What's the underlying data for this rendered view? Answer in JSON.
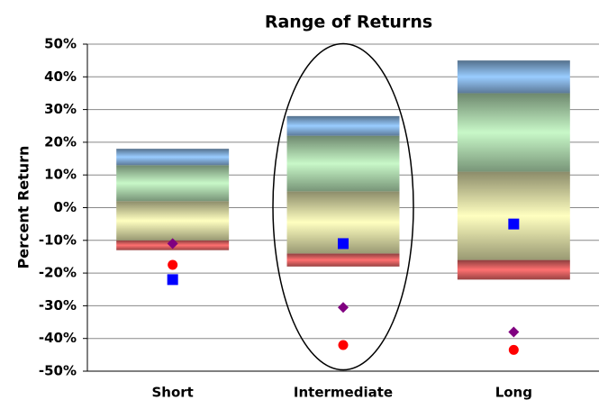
{
  "chart_data": {
    "type": "bar",
    "title": "Range of Returns",
    "y_label": "Percent Return",
    "categories": [
      "Short",
      "Intermediate",
      "Long"
    ],
    "ylim": [
      -50,
      50
    ],
    "yticks": [
      {
        "value": -50,
        "label": "-50%"
      },
      {
        "value": -40,
        "label": "-40%"
      },
      {
        "value": -30,
        "label": "-30%"
      },
      {
        "value": -20,
        "label": "-20%"
      },
      {
        "value": -10,
        "label": "-10%"
      },
      {
        "value": 0,
        "label": "0%"
      },
      {
        "value": 10,
        "label": "10%"
      },
      {
        "value": 20,
        "label": "20%"
      },
      {
        "value": 30,
        "label": "30%"
      },
      {
        "value": 40,
        "label": "40%"
      },
      {
        "value": 50,
        "label": "50%"
      }
    ],
    "grid": true,
    "series": [
      {
        "color": "#ff7070",
        "values": [
          [
            -13,
            -10
          ],
          [
            -18,
            -14
          ],
          [
            -22,
            -16
          ]
        ]
      },
      {
        "color": "#ffffc0",
        "values": [
          [
            -10,
            2
          ],
          [
            -14,
            5
          ],
          [
            -16,
            11
          ]
        ]
      },
      {
        "color": "#c8f8c8",
        "values": [
          [
            2,
            13
          ],
          [
            5,
            22
          ],
          [
            11,
            35
          ]
        ]
      },
      {
        "color": "#99ccff",
        "values": [
          [
            13,
            18
          ],
          [
            22,
            28
          ],
          [
            35,
            45
          ]
        ]
      }
    ],
    "markers": [
      {
        "marker": "square",
        "color": "#0000ff",
        "values": [
          -22,
          -11,
          -5
        ]
      },
      {
        "marker": "diamond",
        "color": "#800080",
        "values": [
          -11,
          -30.5,
          -38
        ]
      },
      {
        "marker": "circle",
        "color": "#ff0000",
        "values": [
          -17.5,
          -42,
          -43.5
        ]
      }
    ]
  }
}
